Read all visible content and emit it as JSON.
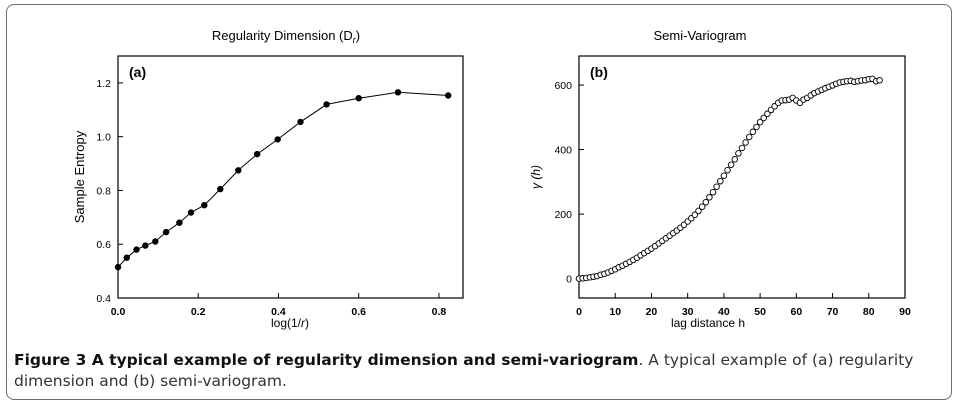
{
  "chart_data": [
    {
      "type": "line",
      "title": "Regularity Dimension (D",
      "title_subscript": "r",
      "title_suffix": ")",
      "panel_label": "(a)",
      "xlabel_prefix": "log(1/",
      "xlabel_italic": "r",
      "xlabel_suffix": ")",
      "ylabel": "Sample Entropy",
      "xlim": [
        0.0,
        0.86
      ],
      "ylim": [
        0.4,
        1.3
      ],
      "xticks": [
        "0.0",
        "0.2",
        "0.4",
        "0.6",
        "0.8"
      ],
      "yticks": [
        "0.4",
        "0.6",
        "0.8",
        "1.0",
        "1.2"
      ],
      "marker": "filled-circle",
      "series": [
        {
          "x": [
            0.0,
            0.022,
            0.046,
            0.068,
            0.093,
            0.12,
            0.153,
            0.182,
            0.215,
            0.255,
            0.3,
            0.347,
            0.398,
            0.455,
            0.52,
            0.6,
            0.698,
            0.823
          ],
          "y": [
            0.515,
            0.55,
            0.58,
            0.595,
            0.61,
            0.645,
            0.68,
            0.718,
            0.745,
            0.805,
            0.875,
            0.935,
            0.99,
            1.055,
            1.12,
            1.143,
            1.165,
            1.153
          ]
        }
      ]
    },
    {
      "type": "scatter",
      "title": "Semi-Variogram",
      "panel_label": "(b)",
      "xlabel": "lag distance h",
      "ylabel": "γ (h)",
      "xlim": [
        0,
        90
      ],
      "ylim": [
        -60,
        690
      ],
      "xticks": [
        "0",
        "10",
        "20",
        "30",
        "40",
        "50",
        "60",
        "70",
        "80",
        "90"
      ],
      "yticks": [
        "0",
        "200",
        "400",
        "600"
      ],
      "marker": "open-circle",
      "series": [
        {
          "x": [
            0,
            1,
            2,
            3,
            4,
            5,
            6,
            7,
            8,
            9,
            10,
            11,
            12,
            13,
            14,
            15,
            16,
            17,
            18,
            19,
            20,
            21,
            22,
            23,
            24,
            25,
            26,
            27,
            28,
            29,
            30,
            31,
            32,
            33,
            34,
            35,
            36,
            37,
            38,
            39,
            40,
            41,
            42,
            43,
            44,
            45,
            46,
            47,
            48,
            49,
            50,
            51,
            52,
            53,
            54,
            55,
            56,
            57,
            58,
            59,
            60,
            61,
            62,
            63,
            64,
            65,
            66,
            67,
            68,
            69,
            70,
            71,
            72,
            73,
            74,
            75,
            76,
            77,
            78,
            79,
            80,
            81,
            82,
            83
          ],
          "y": [
            0,
            1,
            2,
            4,
            6,
            8,
            12,
            15,
            19,
            24,
            29,
            35,
            40,
            46,
            52,
            58,
            65,
            72,
            79,
            86,
            93,
            101,
            109,
            117,
            125,
            133,
            141,
            149,
            158,
            167,
            177,
            187,
            198,
            210,
            223,
            237,
            252,
            268,
            285,
            302,
            319,
            336,
            353,
            370,
            388,
            405,
            422,
            439,
            455,
            470,
            485,
            498,
            511,
            523,
            534,
            545,
            552,
            553,
            555,
            560,
            552,
            545,
            555,
            560,
            568,
            575,
            580,
            585,
            590,
            595,
            599,
            604,
            608,
            610,
            612,
            613,
            610,
            612,
            614,
            615,
            618,
            619,
            612,
            615
          ]
        }
      ]
    }
  ],
  "caption": {
    "figure_title": "Figure 3 A typical example of regularity dimension and semi-variogram",
    "text": ". A typical example of (a) regularity dimension and (b) semi-variogram."
  }
}
